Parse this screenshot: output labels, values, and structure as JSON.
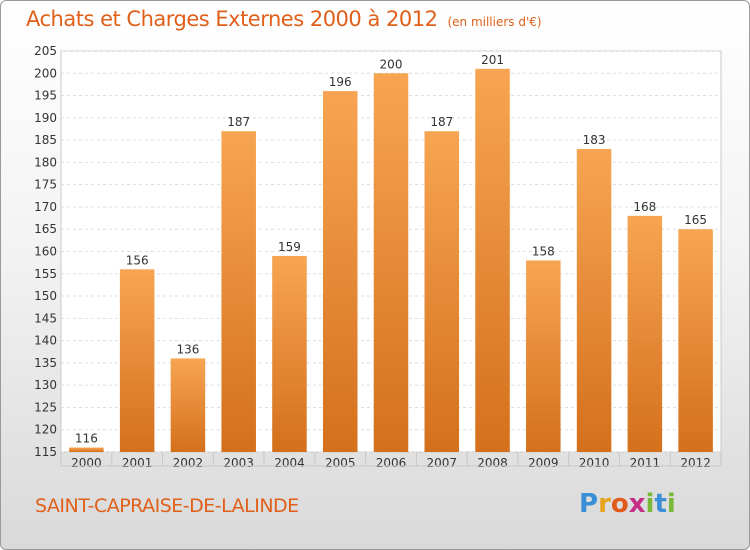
{
  "header": {
    "title": "Achats et Charges Externes 2000 à 2012",
    "unit": "(en milliers d'€)"
  },
  "footer": {
    "commune": "SAINT-CAPRAISE-DE-LALINDE",
    "logo": {
      "letters": [
        "P",
        "r",
        "o",
        "x",
        "i",
        "t",
        "i"
      ],
      "colors": [
        "#3a8fd8",
        "#e8a31c",
        "#e05a1c",
        "#c42e86",
        "#7ab83a",
        "#3a8fd8",
        "#7ab83a"
      ]
    }
  },
  "chart_data": {
    "type": "bar",
    "categories": [
      "2000",
      "2001",
      "2002",
      "2003",
      "2004",
      "2005",
      "2006",
      "2007",
      "2008",
      "2009",
      "2010",
      "2011",
      "2012"
    ],
    "values": [
      116,
      156,
      136,
      187,
      159,
      196,
      200,
      187,
      201,
      158,
      183,
      168,
      165
    ],
    "data_labels": [
      "116",
      "156",
      "136",
      "187",
      "159",
      "196",
      "200",
      "187",
      "201",
      "158",
      "183",
      "168",
      "165"
    ],
    "ylim": [
      115,
      205
    ],
    "yticks": [
      115,
      120,
      125,
      130,
      135,
      140,
      145,
      150,
      155,
      160,
      165,
      170,
      175,
      180,
      185,
      190,
      195,
      200,
      205
    ],
    "grid": true,
    "bar_color_top": "#f7a552",
    "bar_color_bottom": "#d4701c"
  }
}
